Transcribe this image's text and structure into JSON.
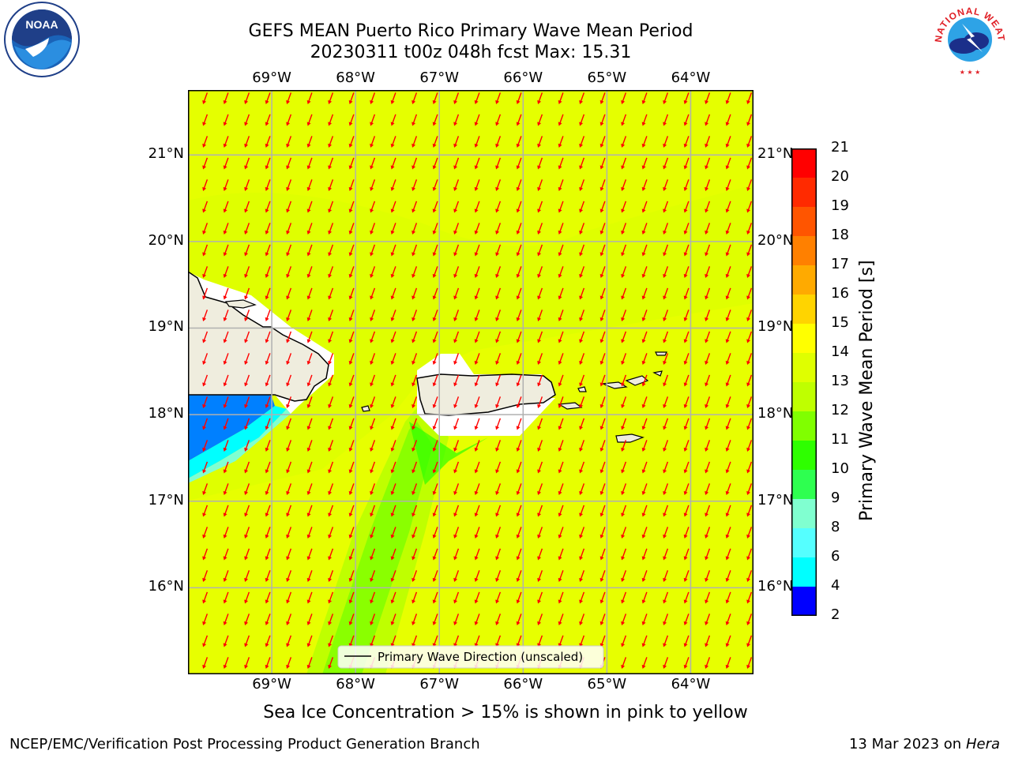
{
  "title": {
    "line1": "GEFS MEAN Puerto Rico Primary Wave Mean Period",
    "line2": "20230311 t00z 048h fcst   Max: 15.31"
  },
  "logos": {
    "left": {
      "text": "NOAA",
      "icon": "noaa-logo-icon"
    },
    "right": {
      "text": "NATIONAL WEATHER SERVICE",
      "icon": "nws-logo-icon"
    }
  },
  "map": {
    "lon_labels": [
      "69°W",
      "68°W",
      "67°W",
      "66°W",
      "65°W",
      "64°W"
    ],
    "lat_labels": [
      "21°N",
      "20°N",
      "19°N",
      "18°N",
      "17°N",
      "16°N"
    ],
    "lon_values": [
      -69,
      -68,
      -67,
      -66,
      -65,
      -64
    ],
    "lat_values": [
      21,
      20,
      19,
      18,
      17,
      16
    ],
    "extent": {
      "lon_min": -70,
      "lon_max": -63.25,
      "lat_min": 15,
      "lat_max": 21.75
    },
    "legend_text": "Primary Wave Direction (unscaled)",
    "arrow_color": "#ff0000",
    "land_color": "#efedde",
    "background_color": "#dfff00"
  },
  "colorbar": {
    "label": "Primary Wave Mean Period [s]",
    "ticks": [
      "21",
      "20",
      "19",
      "18",
      "17",
      "16",
      "15",
      "14",
      "13",
      "12",
      "11",
      "10",
      "9",
      "8",
      "6",
      "4",
      "2"
    ],
    "colors": [
      "#ff0000",
      "#ff2a00",
      "#ff5500",
      "#ff8000",
      "#ffaa00",
      "#ffd400",
      "#ffff00",
      "#dfff00",
      "#bfff00",
      "#80ff00",
      "#2eff00",
      "#2eff50",
      "#80ffd0",
      "#55ffff",
      "#00ffff",
      "#0080ff",
      "#0000ff"
    ]
  },
  "caption": "Sea Ice Concentration > 15% is shown in pink to yellow",
  "footer": {
    "left": "NCEP/EMC/Verification Post Processing Product Generation Branch",
    "date": "13 Mar 2023 on",
    "machine": "Hera"
  }
}
